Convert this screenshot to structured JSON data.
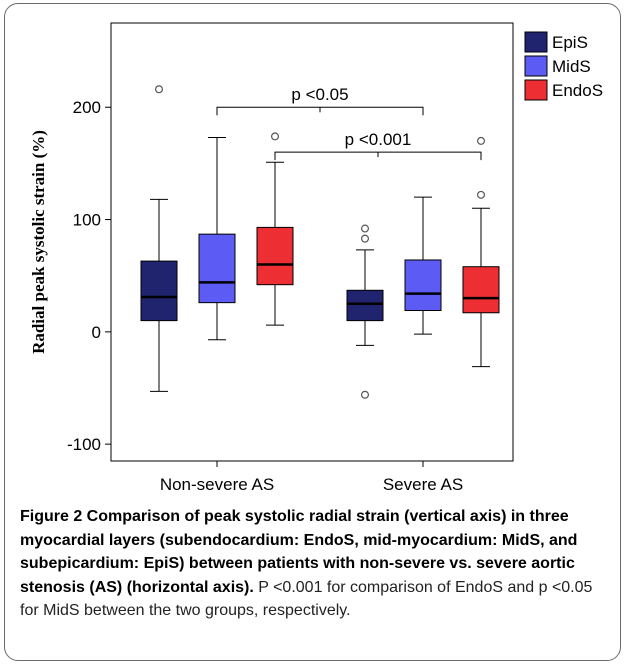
{
  "figure": {
    "caption_bold": "Figure 2 Comparison of peak systolic radial strain (vertical axis) in three myocardial layers (subendocardium: EndoS, mid-myocardium: MidS, and subepicardium: EpiS) between patients with non-severe vs. severe aortic stenosis (AS) (horizontal axis).",
    "caption_text": " P <0.001 for comparison of EndoS and p <0.05 for MidS between the two groups, respectively."
  },
  "chart_data": {
    "type": "boxplot",
    "ylabel": "Radial peak systolic strain (%)",
    "xlabel": "",
    "ylim": [
      -115,
      275
    ],
    "yticks": [
      -100,
      0,
      100,
      200
    ],
    "categories": [
      "Non-severe AS",
      "Severe AS"
    ],
    "legend_position": "top-right",
    "series": [
      {
        "name": "EpiS",
        "color": "#20246e",
        "boxes": [
          {
            "whisker_low": -53,
            "q1": 10,
            "median": 31,
            "q3": 63,
            "whisker_high": 118,
            "outliers": [
              216
            ]
          },
          {
            "whisker_low": -12,
            "q1": 10,
            "median": 25,
            "q3": 37,
            "whisker_high": 73,
            "outliers": [
              92,
              83,
              -56
            ]
          }
        ]
      },
      {
        "name": "MidS",
        "color": "#5c5cf5",
        "boxes": [
          {
            "whisker_low": -7,
            "q1": 26,
            "median": 44,
            "q3": 87,
            "whisker_high": 173,
            "outliers": []
          },
          {
            "whisker_low": -2,
            "q1": 19,
            "median": 34,
            "q3": 64,
            "whisker_high": 120,
            "outliers": []
          }
        ]
      },
      {
        "name": "EndoS",
        "color": "#ed2f34",
        "boxes": [
          {
            "whisker_low": 6,
            "q1": 42,
            "median": 60,
            "q3": 93,
            "whisker_high": 151,
            "outliers": [
              174
            ]
          },
          {
            "whisker_low": -31,
            "q1": 17,
            "median": 30,
            "q3": 58,
            "whisker_high": 110,
            "outliers": [
              170,
              122
            ]
          }
        ]
      }
    ],
    "annotations": [
      {
        "label": "p <0.05",
        "from": {
          "category": 0,
          "series": 1
        },
        "to": {
          "category": 1,
          "series": 1
        },
        "y": 200
      },
      {
        "label": "p <0.001",
        "from": {
          "category": 0,
          "series": 2
        },
        "to": {
          "category": 1,
          "series": 2
        },
        "y": 160
      }
    ]
  }
}
